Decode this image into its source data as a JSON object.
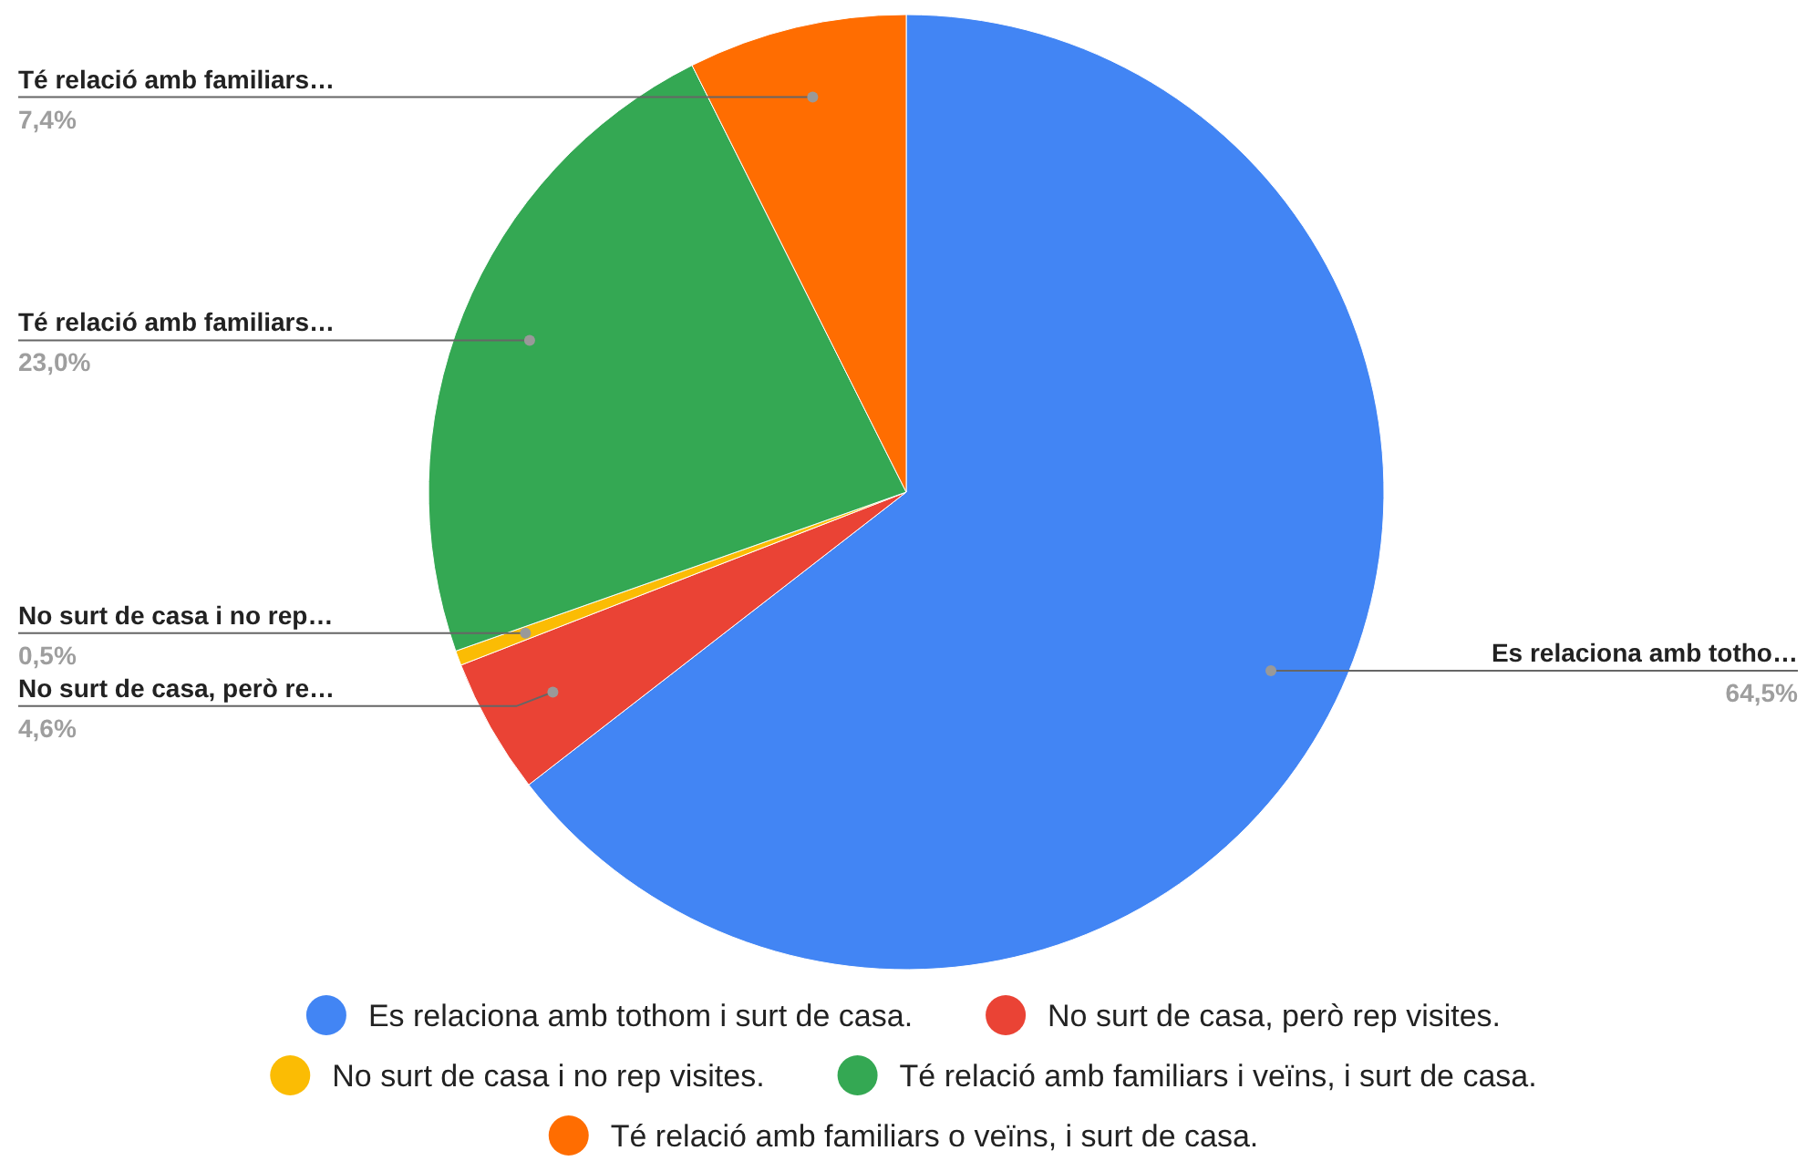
{
  "chart_data": {
    "type": "pie",
    "categories": [
      "Es relaciona amb tothom i surt de casa.",
      "No surt de casa, però rep visites.",
      "No surt de casa i no rep visites.",
      "Té relació amb familiars i veïns, i surt de casa.",
      "Té relació amb familiars o veïns, i surt de casa."
    ],
    "values": [
      64.5,
      4.6,
      0.5,
      23.0,
      7.4
    ],
    "colors": [
      "#4285f4",
      "#ea4335",
      "#fbbc04",
      "#34a853",
      "#ff6d01"
    ],
    "value_labels": [
      "64,5%",
      "4,6%",
      "0,5%",
      "23,0%",
      "7,4%"
    ],
    "annotations": [
      "Es relaciona amb totho…",
      "No surt de casa, però re…",
      "No surt de casa i no rep…",
      "Té relació amb familiars…",
      "Té relació amb familiars…"
    ],
    "legend": "bottom"
  }
}
